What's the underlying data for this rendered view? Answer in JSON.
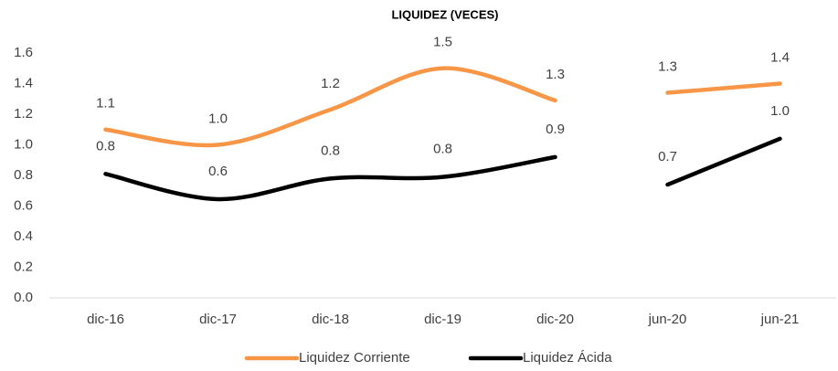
{
  "chart_data": {
    "type": "line",
    "title": "LIQUIDEZ (VECES)",
    "categories": [
      "dic-16",
      "dic-17",
      "dic-18",
      "dic-19",
      "dic-20",
      "jun-20",
      "jun-21"
    ],
    "line_breaks": [
      "dic-20"
    ],
    "series": [
      {
        "name": "Liquidez Corriente",
        "color": "#f79646",
        "values": [
          1.1,
          1.0,
          1.23,
          1.5,
          1.29,
          1.34,
          1.4
        ],
        "value_labels": [
          "1.1",
          "1.0",
          "1.2",
          "1.5",
          "1.3",
          "1.3",
          "1.4"
        ]
      },
      {
        "name": "Liquidez Ácida",
        "color": "#000000",
        "values": [
          0.81,
          0.645,
          0.78,
          0.79,
          0.92,
          0.74,
          1.04
        ],
        "value_labels": [
          "0.8",
          "0.6",
          "0.8",
          "0.8",
          "0.9",
          "0.7",
          "1.0"
        ]
      }
    ],
    "ylim": [
      0,
      1.6
    ],
    "yticks": [
      {
        "value": 0,
        "label": "0.0"
      },
      0.2,
      0.4,
      0.6,
      0.8,
      {
        "value": 1,
        "label": "1.0"
      },
      1.2,
      1.4,
      1.6
    ],
    "grid": false,
    "legend": "bottom"
  }
}
